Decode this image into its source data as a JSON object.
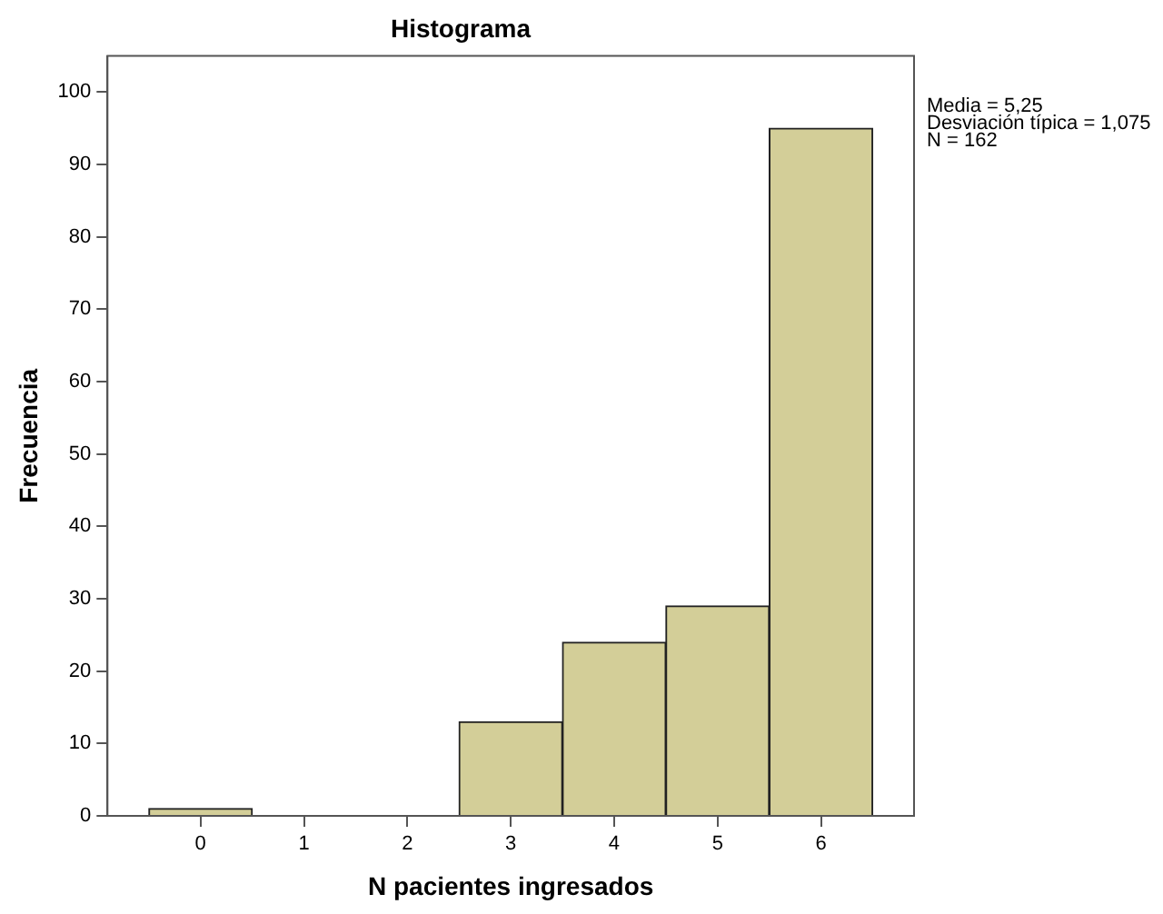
{
  "chart_data": {
    "type": "histogram",
    "title": "Histograma",
    "xlabel": "N pacientes ingresados",
    "ylabel": "Frecuencia",
    "bins": [
      -0.5,
      0.5,
      1.5,
      2.5,
      3.5,
      4.5,
      5.5,
      6.5
    ],
    "values": [
      1,
      0,
      0,
      13,
      24,
      29,
      95
    ],
    "color": "#d3ce98",
    "xlim": [
      -0.9,
      6.9
    ],
    "xticks": [
      0,
      1,
      2,
      3,
      4,
      5,
      6
    ],
    "ylim": [
      0,
      105
    ],
    "yticks": [
      0,
      10,
      20,
      30,
      40,
      50,
      60,
      70,
      80,
      90,
      100
    ],
    "grid": false,
    "legend": false,
    "annotations": [
      "Media = 5,25",
      "Desviación típica = 1,075",
      "N = 162"
    ]
  }
}
